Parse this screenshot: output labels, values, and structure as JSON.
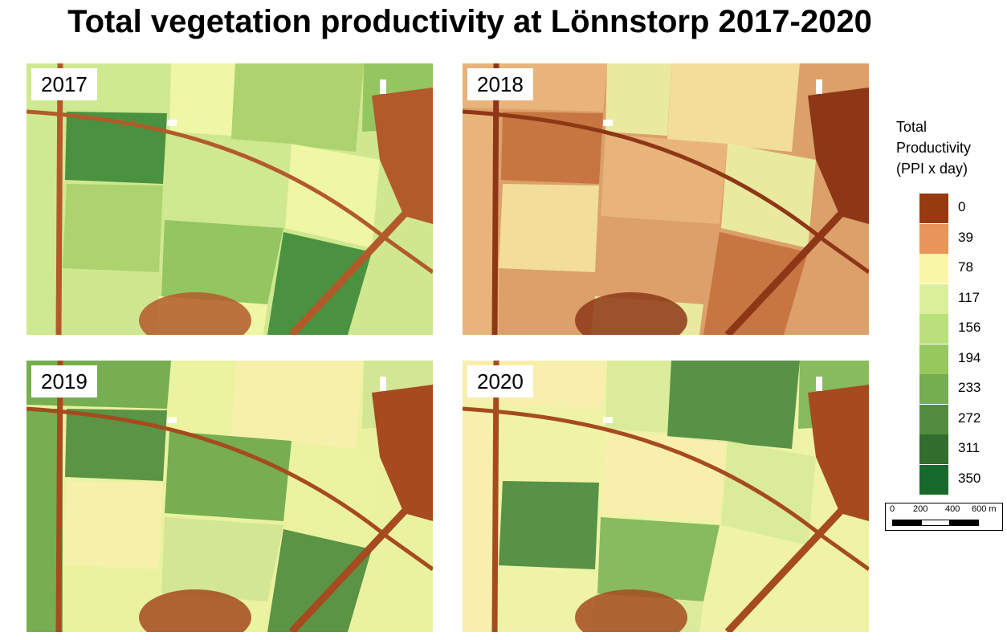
{
  "title": "Total vegetation productivity at Lönnstorp 2017-2020",
  "panels": [
    {
      "year": "2017",
      "palette": [
        "#cfe890",
        "#a9d06a",
        "#3f8a3a",
        "#f2f6a8",
        "#8ec25d",
        "#b35a2a"
      ]
    },
    {
      "year": "2018",
      "palette": [
        "#dca06a",
        "#e8b57c",
        "#f3e2a0",
        "#c4713e",
        "#e9efa4",
        "#8e3716"
      ]
    },
    {
      "year": "2019",
      "palette": [
        "#eaf2a0",
        "#cfe591",
        "#6ba84a",
        "#f6f0ab",
        "#4d8c3c",
        "#a64a1f"
      ]
    },
    {
      "year": "2020",
      "palette": [
        "#eef3a6",
        "#d8ea98",
        "#7fb657",
        "#f7efab",
        "#4a8a3e",
        "#a64b20"
      ]
    }
  ],
  "legend": {
    "title_lines": [
      "Total",
      "Productivity",
      "(PPI x day)"
    ],
    "items": [
      {
        "value": "0",
        "color": "#973a10"
      },
      {
        "value": "39",
        "color": "#e8955a"
      },
      {
        "value": "78",
        "color": "#f9f6a8"
      },
      {
        "value": "117",
        "color": "#dcef9b"
      },
      {
        "value": "156",
        "color": "#b9e07a"
      },
      {
        "value": "194",
        "color": "#97c85e"
      },
      {
        "value": "233",
        "color": "#75ad51"
      },
      {
        "value": "272",
        "color": "#528d3f"
      },
      {
        "value": "311",
        "color": "#336d2d"
      },
      {
        "value": "350",
        "color": "#186a2c"
      }
    ]
  },
  "scalebar": {
    "labels": [
      "0",
      "200",
      "400",
      "600 m"
    ]
  }
}
